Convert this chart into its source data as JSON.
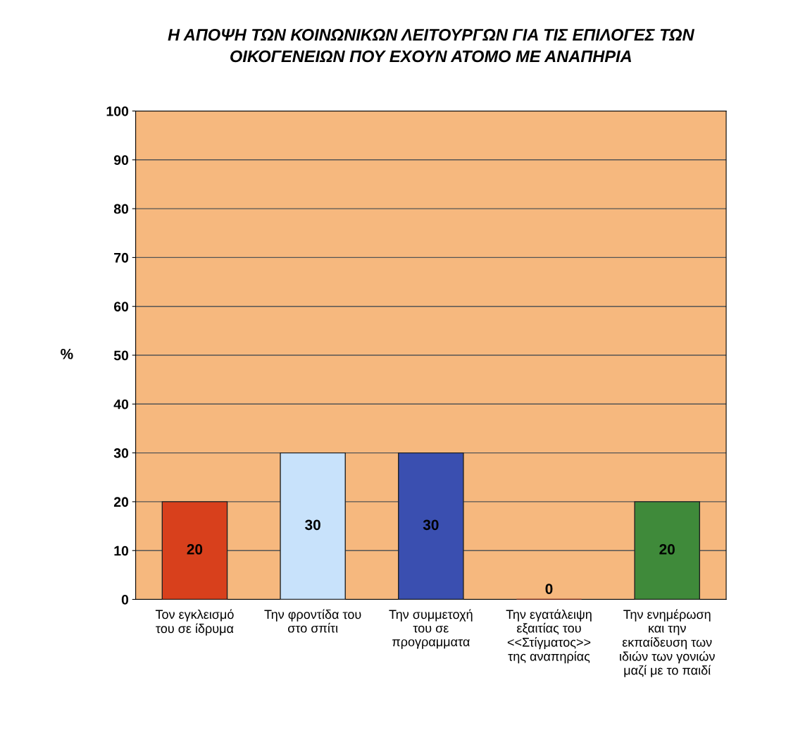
{
  "chart_data": {
    "type": "bar",
    "title": "Η ΑΠΟΨΗ ΤΩΝ ΚΟΙΝΩΝΙΚΩΝ ΛΕΙΤΟΥΡΓΩΝ ΓΙΑ ΤΙΣ ΕΠΙΛΟΓΕΣ ΤΩΝ\nΟΙΚΟΓΕΝΕΙΩΝ ΠΟΥ ΕΧΟΥΝ ΑΤΟΜΟ ΜΕ ΑΝΑΠΗΡΙΑ",
    "ylabel": "%",
    "categories": [
      "Τον εγκλεισμό\nτου σε ίδρυμα",
      "Την φροντίδα του\nστο σπίτι",
      "Την συμμετοχή\nτου σε\nπρογραμματα",
      "Την εγατάλειψη\nεξαιτίας του\n<<Στίγματος>>\nτης αναπηρίας",
      "Την ενημέρωση\nκαι την\nεκπαίδευση των\nιδιών των γονιών\nμαζί με το παιδί"
    ],
    "values": [
      20,
      30,
      30,
      0,
      20
    ],
    "colors": [
      "#d8401c",
      "#c8e2fb",
      "#3a4fb0",
      "#c0341a",
      "#3f8a3a"
    ],
    "ylim": [
      0,
      100
    ],
    "yticks": [
      0,
      10,
      20,
      30,
      40,
      50,
      60,
      70,
      80,
      90,
      100
    ],
    "grid": "y",
    "data_labels": true
  }
}
